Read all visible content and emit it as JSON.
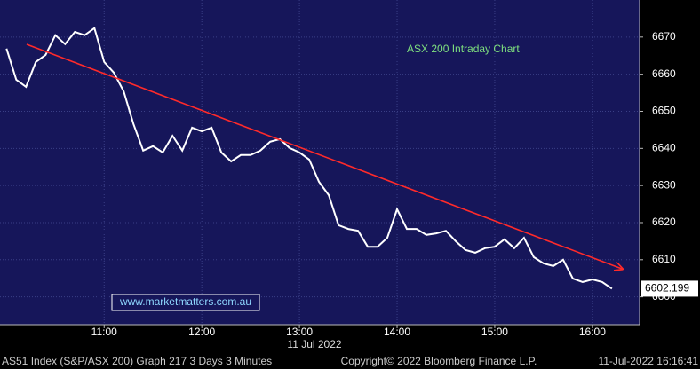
{
  "chart_data": {
    "type": "line",
    "annotation": "ASX 200 Intraday Chart",
    "watermark": "www.marketmatters.com.au",
    "x_date_label": "11 Jul 2022",
    "footer": {
      "left": "AS51 Index (S&P/ASX 200) Graph 217 3 Days 3 Minutes",
      "center": "Copyright© 2022 Bloomberg Finance L.P.",
      "right": "11-Jul-2022 16:16:41"
    },
    "x": [
      600,
      606,
      612,
      618,
      624,
      630,
      636,
      642,
      648,
      654,
      660,
      666,
      672,
      678,
      684,
      690,
      696,
      702,
      708,
      714,
      720,
      726,
      732,
      738,
      744,
      750,
      756,
      762,
      768,
      774,
      780,
      786,
      792,
      798,
      804,
      810,
      816,
      822,
      828,
      834,
      840,
      846,
      852,
      858,
      864,
      870,
      876,
      882,
      888,
      894,
      900,
      906,
      912,
      918,
      924,
      930,
      936,
      942,
      948,
      954,
      960,
      966,
      972
    ],
    "series": [
      {
        "color": "#ffffff",
        "values": [
          6666.9,
          6658.5,
          6656.6,
          6663.3,
          6665.2,
          6670.5,
          6668.1,
          6671.4,
          6670.5,
          6672.4,
          6663.3,
          6660.4,
          6655.4,
          6646.6,
          6639.4,
          6640.6,
          6638.9,
          6643.4,
          6639.4,
          6645.6,
          6644.6,
          6645.6,
          6638.9,
          6636.5,
          6638.2,
          6638.2,
          6639.4,
          6641.8,
          6642.5,
          6640.1,
          6638.9,
          6637.0,
          6631.0,
          6627.4,
          6619.3,
          6618.3,
          6617.8,
          6613.5,
          6613.5,
          6615.9,
          6623.6,
          6618.3,
          6618.3,
          6616.7,
          6617.1,
          6617.8,
          6615.0,
          6612.6,
          6611.9,
          6613.1,
          6613.5,
          6615.5,
          6613.1,
          6615.9,
          6610.7,
          6609.0,
          6608.3,
          6610.0,
          6604.9,
          6604.0,
          6604.7,
          6604.0,
          6602.199
        ]
      }
    ],
    "xlim": [
      596,
      989
    ],
    "xticks": [
      {
        "value": 660,
        "label": "11:00"
      },
      {
        "value": 720,
        "label": "12:00"
      },
      {
        "value": 780,
        "label": "13:00"
      },
      {
        "value": 840,
        "label": "14:00"
      },
      {
        "value": 900,
        "label": "15:00"
      },
      {
        "value": 960,
        "label": "16:00"
      }
    ],
    "ylim": [
      6592.5,
      6680
    ],
    "yticks": [
      6600,
      6610,
      6620,
      6630,
      6640,
      6650,
      6660,
      6670
    ],
    "grid": true,
    "background": "#16165a"
  }
}
